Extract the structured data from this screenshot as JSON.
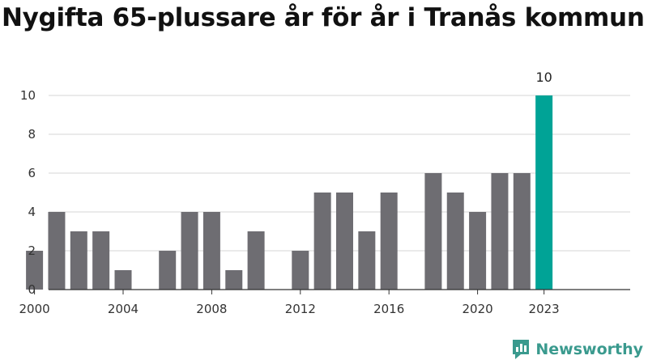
{
  "title": "Nygifta 65-plussare år för år i Tranås kommun",
  "brand": {
    "name": "Newsworthy",
    "logo_icon": "bar-chart-speech-bubble-icon"
  },
  "colors": {
    "bar": "#6e6d72",
    "highlight": "#00a396",
    "brand": "#3a9a8e"
  },
  "chart_data": {
    "type": "bar",
    "title": "Nygifta 65-plussare år för år i Tranås kommun",
    "xlabel": "",
    "ylabel": "",
    "ylim": [
      0,
      10
    ],
    "yticks": [
      0,
      2,
      4,
      6,
      8,
      10
    ],
    "xticks": [
      2000,
      2004,
      2008,
      2012,
      2016,
      2020,
      2023
    ],
    "highlight_year": 2023,
    "data_labels": [
      {
        "year": 2023,
        "text": "10"
      }
    ],
    "categories": [
      2000,
      2001,
      2002,
      2003,
      2004,
      2005,
      2006,
      2007,
      2008,
      2009,
      2010,
      2011,
      2012,
      2013,
      2014,
      2015,
      2016,
      2017,
      2018,
      2019,
      2020,
      2021,
      2022,
      2023
    ],
    "values": [
      2,
      4,
      3,
      3,
      1,
      0,
      2,
      4,
      4,
      1,
      3,
      0,
      2,
      5,
      5,
      3,
      5,
      0,
      6,
      5,
      4,
      6,
      6,
      10
    ]
  }
}
